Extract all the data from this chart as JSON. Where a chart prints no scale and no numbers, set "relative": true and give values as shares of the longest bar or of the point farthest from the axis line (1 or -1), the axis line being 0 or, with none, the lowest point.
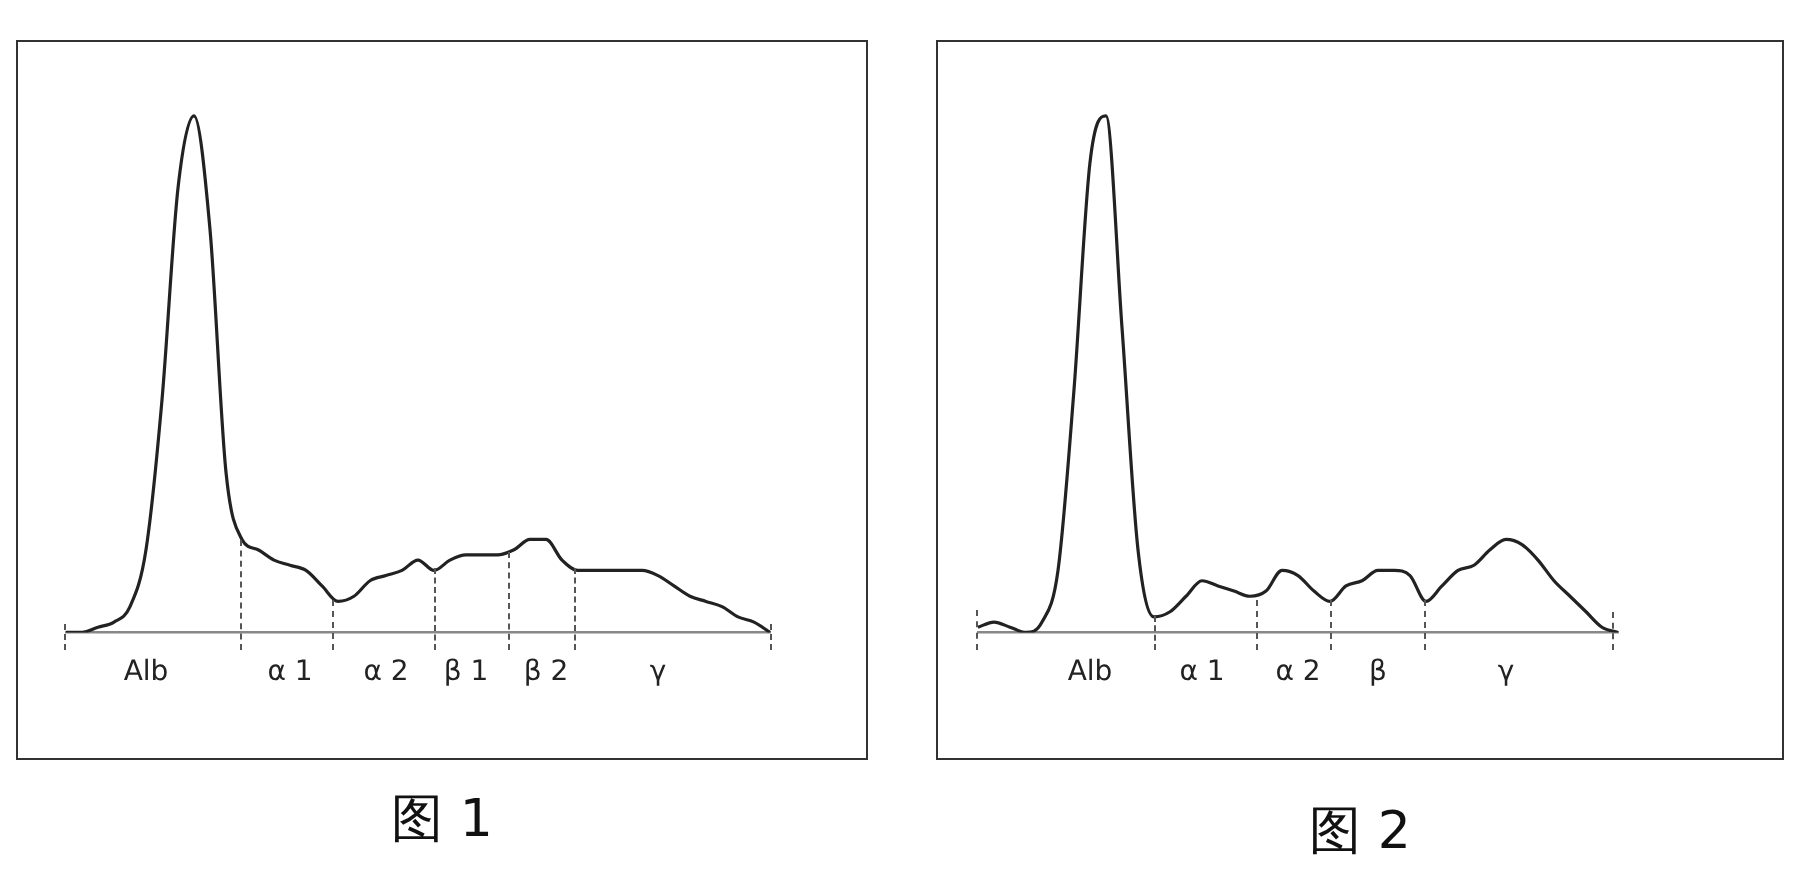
{
  "chart_data": [
    {
      "type": "line",
      "relative": true,
      "categories": [
        null,
        null,
        null,
        null,
        null,
        "Alb",
        null,
        null,
        null,
        null,
        null,
        null,
        null,
        null,
        "α 1",
        null,
        null,
        null,
        null,
        null,
        "α 2",
        null,
        null,
        null,
        null,
        "β 1",
        null,
        null,
        null,
        null,
        "β 2",
        null,
        null,
        null,
        null,
        null,
        null,
        "γ",
        null,
        null,
        null,
        null,
        null,
        null,
        null
      ],
      "series": [
        {
          "color": "#222222",
          "values": [
            0,
            0,
            0.01,
            0.02,
            0.05,
            0.16,
            0.45,
            0.86,
            1,
            0.78,
            0.31,
            0.18,
            0.16,
            0.14,
            0.13,
            0.12,
            0.09,
            0.06,
            0.07,
            0.1,
            0.11,
            0.12,
            0.14,
            0.12,
            0.14,
            0.15,
            0.15,
            0.15,
            0.16,
            0.18,
            0.18,
            0.14,
            0.12,
            0.12,
            0.12,
            0.12,
            0.12,
            0.11,
            0.09,
            0.07,
            0.06,
            0.05,
            0.03,
            0.02,
            0
          ]
        }
      ],
      "grid": false,
      "legend": false,
      "marker": "none",
      "annotations": [
        "图 1"
      ]
    },
    {
      "type": "line",
      "relative": true,
      "categories": [
        null,
        null,
        null,
        null,
        null,
        null,
        null,
        "Alb",
        null,
        null,
        null,
        null,
        null,
        null,
        "α 1",
        null,
        null,
        null,
        null,
        null,
        "α 2",
        null,
        null,
        null,
        null,
        "β",
        null,
        null,
        null,
        null,
        null,
        null,
        null,
        "γ",
        null,
        null,
        null,
        null,
        null,
        null,
        null
      ],
      "series": [
        {
          "color": "#222222",
          "values": [
            0.01,
            0.02,
            0.01,
            0,
            0.02,
            0.12,
            0.47,
            0.91,
            1,
            0.59,
            0.16,
            0.03,
            0.04,
            0.07,
            0.1,
            0.09,
            0.08,
            0.07,
            0.08,
            0.12,
            0.11,
            0.08,
            0.06,
            0.09,
            0.1,
            0.12,
            0.12,
            0.11,
            0.06,
            0.09,
            0.12,
            0.13,
            0.16,
            0.18,
            0.17,
            0.14,
            0.1,
            0.07,
            0.04,
            0.01,
            0
          ]
        }
      ],
      "grid": false,
      "legend": false,
      "marker": "none",
      "annotations": [
        "图 2"
      ]
    }
  ]
}
